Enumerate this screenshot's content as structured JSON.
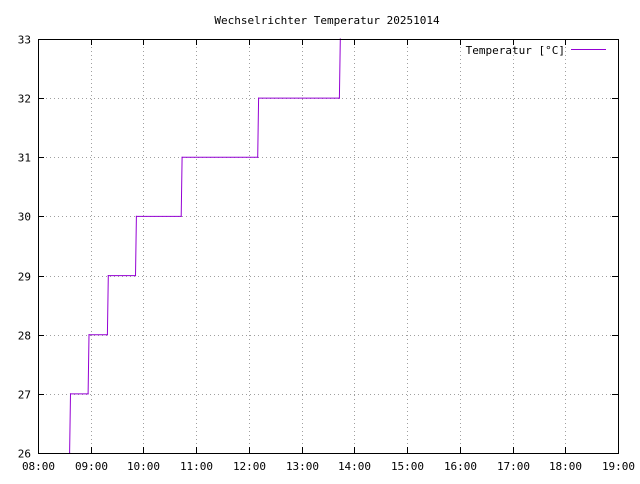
{
  "chart_data": {
    "type": "line",
    "title": "Wechselrichter Temperatur 20251014",
    "xlabel": "",
    "ylabel": "",
    "x_unit": "time of day (HH:MM)",
    "xlim": [
      "08:00",
      "19:00"
    ],
    "ylim": [
      26,
      33
    ],
    "x_ticks": [
      "08:00",
      "09:00",
      "10:00",
      "11:00",
      "12:00",
      "13:00",
      "14:00",
      "15:00",
      "16:00",
      "17:00",
      "18:00",
      "19:00"
    ],
    "y_ticks": [
      26,
      27,
      28,
      29,
      30,
      31,
      32,
      33
    ],
    "grid": true,
    "legend_position": "top-right",
    "series": [
      {
        "name": "Temperatur [°C]",
        "color": "#9400d3",
        "step": true,
        "points": [
          {
            "x": "08:36",
            "y": 26
          },
          {
            "x": "08:37",
            "y": 27
          },
          {
            "x": "08:57",
            "y": 27
          },
          {
            "x": "08:58",
            "y": 28
          },
          {
            "x": "09:19",
            "y": 28
          },
          {
            "x": "09:20",
            "y": 29
          },
          {
            "x": "09:51",
            "y": 29
          },
          {
            "x": "09:52",
            "y": 30
          },
          {
            "x": "10:43",
            "y": 30
          },
          {
            "x": "10:44",
            "y": 31
          },
          {
            "x": "12:10",
            "y": 31
          },
          {
            "x": "12:11",
            "y": 32
          },
          {
            "x": "13:43",
            "y": 32
          },
          {
            "x": "13:44",
            "y": 33
          }
        ]
      }
    ]
  }
}
